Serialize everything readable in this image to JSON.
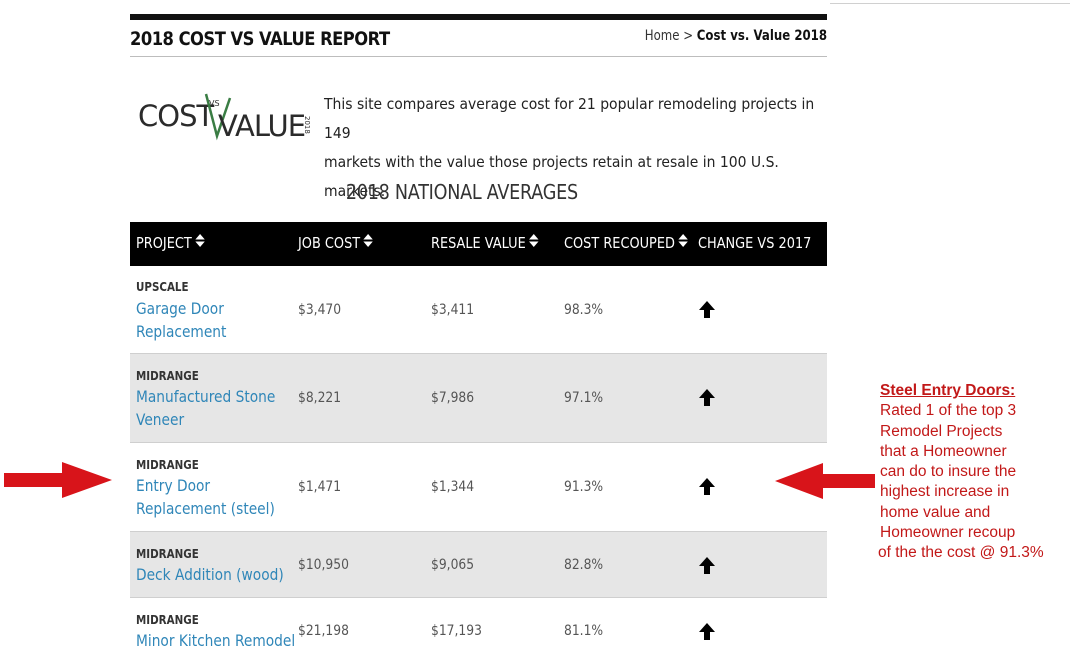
{
  "header": {
    "site_title": "2018 COST VS VALUE REPORT",
    "breadcrumb_home": "Home",
    "breadcrumb_sep": " > ",
    "breadcrumb_current": "Cost vs. Value 2018"
  },
  "logo": {
    "word1": "COST",
    "vs": "VS",
    "word2": "VALUE",
    "year": "2018"
  },
  "intro": {
    "line1": "This site compares average cost for 21 popular remodeling projects in 149",
    "line2": "markets with the value those projects retain at resale in 100 U.S. markets."
  },
  "section_heading": "2018 NATIONAL AVERAGES",
  "table": {
    "columns": [
      "PROJECT",
      "JOB COST",
      "RESALE VALUE",
      "COST RECOUPED",
      "CHANGE VS 2017"
    ],
    "sort_icon": "sort-icon",
    "rows": [
      {
        "tier": "UPSCALE",
        "name_l1": "Garage Door",
        "name_l2": "Replacement",
        "job_cost": "$3,470",
        "resale": "$3,411",
        "recouped": "98.3%",
        "change": "up-arrow-icon"
      },
      {
        "tier": "MIDRANGE",
        "name_l1": "Manufactured Stone",
        "name_l2": "Veneer",
        "job_cost": "$8,221",
        "resale": "$7,986",
        "recouped": "97.1%",
        "change": "up-arrow-icon"
      },
      {
        "tier": "MIDRANGE",
        "name_l1": "Entry Door",
        "name_l2": "Replacement (steel)",
        "job_cost": "$1,471",
        "resale": "$1,344",
        "recouped": "91.3%",
        "change": "up-arrow-icon"
      },
      {
        "tier": "MIDRANGE",
        "name_l1": "Deck Addition (wood)",
        "name_l2": "",
        "job_cost": "$10,950",
        "resale": "$9,065",
        "recouped": "82.8%",
        "change": "up-arrow-icon"
      },
      {
        "tier": "MIDRANGE",
        "name_l1": "Minor Kitchen Remodel",
        "name_l2": "",
        "job_cost": "$21,198",
        "resale": "$17,193",
        "recouped": "81.1%",
        "change": "up-arrow-icon"
      }
    ]
  },
  "annotation": {
    "title": "Steel Entry Doors:",
    "lines": [
      "Rated 1 of the top 3",
      "Remodel Projects",
      "that a Homeowner",
      "can do to insure the",
      "highest increase in",
      "home value and",
      "Homeowner recoup",
      "of the the cost @ 91.3%"
    ]
  },
  "colors": {
    "link": "#2f86b8",
    "header_bg": "#000000",
    "alt_row": "#e6e6e6",
    "annotation": "#c21818",
    "logo_accent": "#3a7d44"
  }
}
